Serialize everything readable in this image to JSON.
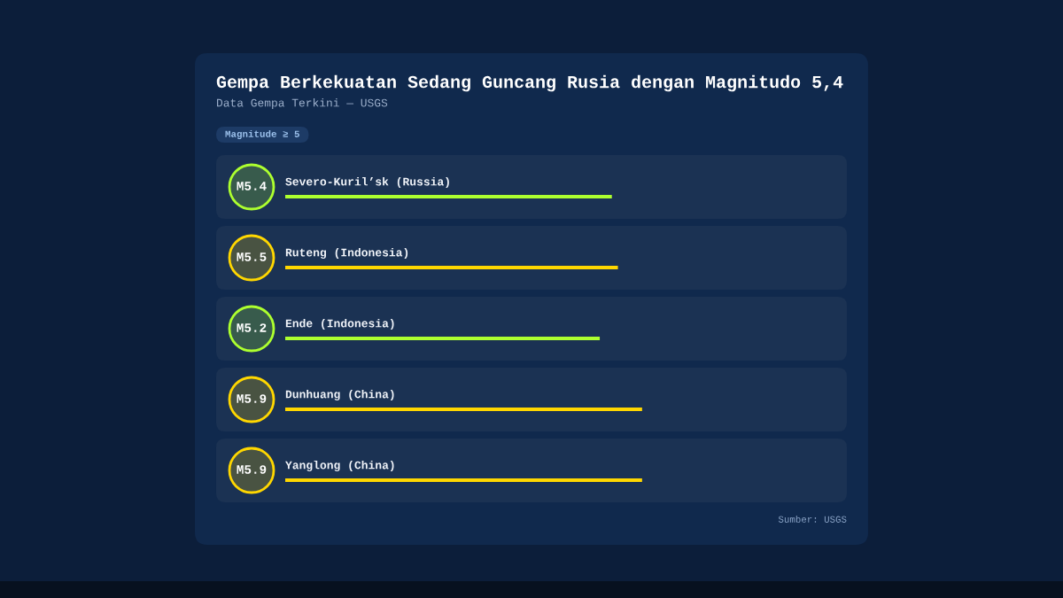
{
  "chart_data": {
    "type": "bar",
    "orientation": "horizontal",
    "title": "Gempa Berkekuatan Sedang Guncang Rusia dengan Magnitudo 5,4",
    "subtitle": "Data Gempa Terkini — USGS",
    "annotations": [
      "Magnitude ≥ 5",
      "Sumber: USGS"
    ],
    "categories": [
      "Severo-Kuril’sk (Russia)",
      "Ruteng (Indonesia)",
      "Ende (Indonesia)",
      "Dunhuang (China)",
      "Yanglong (China)"
    ],
    "values": [
      5.4,
      5.5,
      5.2,
      5.9,
      5.9
    ],
    "value_labels": [
      "M5.4",
      "M5.5",
      "M5.2",
      "M5.9",
      "M5.9"
    ],
    "colors": [
      "#adff2f",
      "#ffd700",
      "#adff2f",
      "#ffd700",
      "#ffd700"
    ],
    "tick_labels": "y"
  }
}
